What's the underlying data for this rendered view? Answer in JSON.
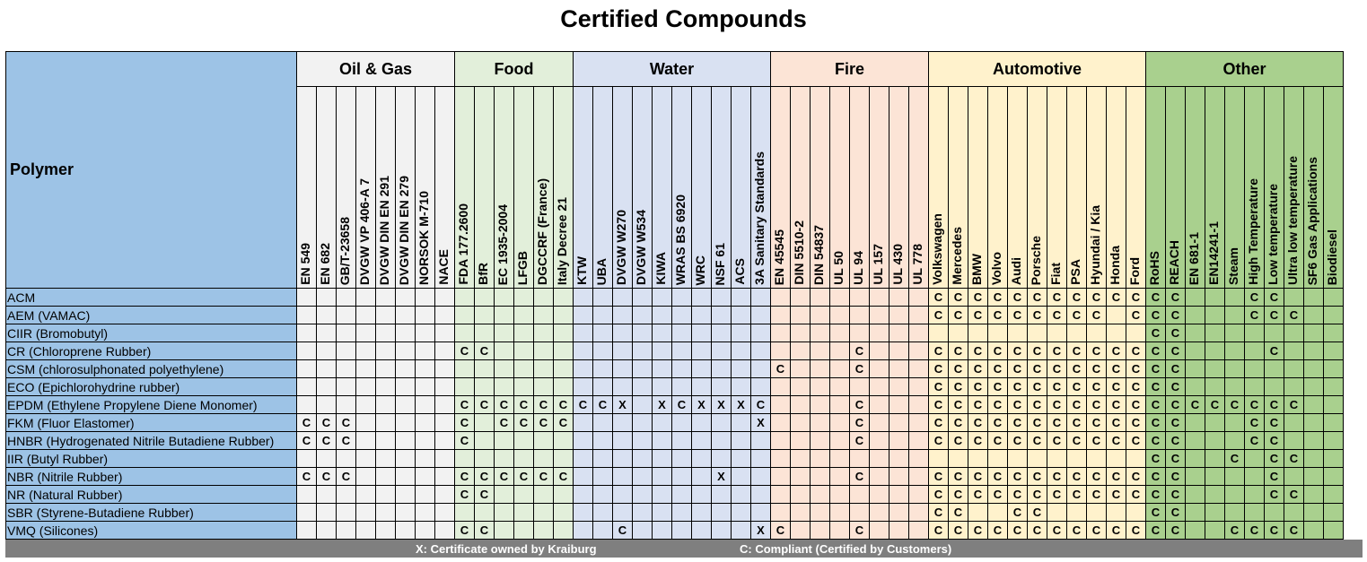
{
  "title": "Certified Compounds",
  "polymer_header": "Polymer",
  "groups": [
    {
      "name": "Oil & Gas",
      "cls": "c-oil",
      "standards": [
        "EN 549",
        "EN 682",
        "GB/T-23658",
        "DVGW VP 406-A 7",
        "DVGW DIN EN 291",
        "DVGW DIN EN 279",
        "NORSOK M-710",
        "NACE"
      ]
    },
    {
      "name": "Food",
      "cls": "c-food",
      "standards": [
        "FDA 177.2600",
        "BfR",
        "EC 1935-2004",
        "LFGB",
        "DGCCRF (France)",
        "Italy Decree 21"
      ]
    },
    {
      "name": "Water",
      "cls": "c-water",
      "standards": [
        "KTW",
        "UBA",
        "DVGW W270",
        "DVGW W534",
        "KIWA",
        "WRAS BS 6920",
        "WRC",
        "NSF 61",
        "ACS",
        "3A Sanitary Standards"
      ]
    },
    {
      "name": "Fire",
      "cls": "c-fire",
      "standards": [
        "EN 45545",
        "DIN 5510-2",
        "DIN 54837",
        "UL 50",
        "UL 94",
        "UL 157",
        "UL 430",
        "UL 778"
      ]
    },
    {
      "name": "Automotive",
      "cls": "c-auto",
      "standards": [
        "Volkswagen",
        "Mercedes",
        "BMW",
        "Volvo",
        "Audi",
        "Porsche",
        "Fiat",
        "PSA",
        "Hyundai / Kia",
        "Honda",
        "Ford"
      ]
    },
    {
      "name": "Other",
      "cls": "c-other",
      "standards": [
        "RoHS",
        "REACH",
        "EN 681-1",
        "EN14241-1",
        "Steam",
        "High Temperature",
        "Low temperature",
        "Ultra low temperature",
        "SF6 Gas Applications",
        "Biodiesel"
      ]
    }
  ],
  "rows": [
    {
      "polymer": "ACM",
      "cells": [
        "",
        "",
        "",
        "",
        "",
        "",
        "",
        "",
        "",
        "",
        "",
        "",
        "",
        "",
        "",
        "",
        "",
        "",
        "",
        "",
        "",
        "",
        "",
        "",
        "",
        "",
        "",
        "",
        "",
        "",
        "",
        "",
        "C",
        "C",
        "C",
        "C",
        "C",
        "C",
        "C",
        "C",
        "C",
        "C",
        "C",
        "C",
        "C",
        "",
        "",
        "",
        "C",
        "C",
        "",
        "",
        ""
      ]
    },
    {
      "polymer": "AEM (VAMAC)",
      "cells": [
        "",
        "",
        "",
        "",
        "",
        "",
        "",
        "",
        "",
        "",
        "",
        "",
        "",
        "",
        "",
        "",
        "",
        "",
        "",
        "",
        "",
        "",
        "",
        "",
        "",
        "",
        "",
        "",
        "",
        "",
        "",
        "",
        "C",
        "C",
        "C",
        "C",
        "C",
        "C",
        "C",
        "C",
        "C",
        "",
        "C",
        "C",
        "C",
        "",
        "",
        "",
        "C",
        "C",
        "C",
        "",
        ""
      ]
    },
    {
      "polymer": "CIIR (Bromobutyl)",
      "cells": [
        "",
        "",
        "",
        "",
        "",
        "",
        "",
        "",
        "",
        "",
        "",
        "",
        "",
        "",
        "",
        "",
        "",
        "",
        "",
        "",
        "",
        "",
        "",
        "",
        "",
        "",
        "",
        "",
        "",
        "",
        "",
        "",
        "",
        "",
        "",
        "",
        "",
        "",
        "",
        "",
        "",
        "",
        "",
        "C",
        "C",
        "",
        "",
        "",
        "",
        "",
        "",
        "",
        ""
      ]
    },
    {
      "polymer": "CR (Chloroprene Rubber)",
      "cells": [
        "",
        "",
        "",
        "",
        "",
        "",
        "",
        "",
        "C",
        "C",
        "",
        "",
        "",
        "",
        "",
        "",
        "",
        "",
        "",
        "",
        "",
        "",
        "",
        "",
        "",
        "",
        "",
        "",
        "C",
        "",
        "",
        "",
        "C",
        "C",
        "C",
        "C",
        "C",
        "C",
        "C",
        "C",
        "C",
        "C",
        "C",
        "C",
        "C",
        "",
        "",
        "",
        "",
        "C",
        "",
        "",
        ""
      ]
    },
    {
      "polymer": "CSM (chlorosulphonated polyethylene)",
      "cells": [
        "",
        "",
        "",
        "",
        "",
        "",
        "",
        "",
        "",
        "",
        "",
        "",
        "",
        "",
        "",
        "",
        "",
        "",
        "",
        "",
        "",
        "",
        "",
        "",
        "C",
        "",
        "",
        "",
        "C",
        "",
        "",
        "",
        "C",
        "C",
        "C",
        "C",
        "C",
        "C",
        "C",
        "C",
        "C",
        "C",
        "C",
        "C",
        "C",
        "",
        "",
        "",
        "",
        "",
        "",
        "",
        ""
      ]
    },
    {
      "polymer": "ECO (Epichlorohydrine rubber)",
      "cells": [
        "",
        "",
        "",
        "",
        "",
        "",
        "",
        "",
        "",
        "",
        "",
        "",
        "",
        "",
        "",
        "",
        "",
        "",
        "",
        "",
        "",
        "",
        "",
        "",
        "",
        "",
        "",
        "",
        "",
        "",
        "",
        "",
        "C",
        "C",
        "C",
        "C",
        "C",
        "C",
        "C",
        "C",
        "C",
        "C",
        "C",
        "C",
        "C",
        "",
        "",
        "",
        "",
        "",
        "",
        "",
        ""
      ]
    },
    {
      "polymer": "EPDM (Ethylene Propylene Diene Monomer)",
      "cells": [
        "",
        "",
        "",
        "",
        "",
        "",
        "",
        "",
        "C",
        "C",
        "C",
        "C",
        "C",
        "C",
        "C",
        "C",
        "X",
        "",
        "X",
        "C",
        "X",
        "X",
        "X",
        "C",
        "",
        "",
        "",
        "",
        "C",
        "",
        "",
        "",
        "C",
        "C",
        "C",
        "C",
        "C",
        "C",
        "C",
        "C",
        "C",
        "C",
        "C",
        "C",
        "C",
        "C",
        "C",
        "C",
        "C",
        "C",
        "C",
        "",
        ""
      ]
    },
    {
      "polymer": "FKM (Fluor Elastomer)",
      "cells": [
        "C",
        "C",
        "C",
        "",
        "",
        "",
        "",
        "",
        "C",
        "",
        "C",
        "C",
        "C",
        "C",
        "",
        "",
        "",
        "",
        "",
        "",
        "",
        "",
        "",
        "X",
        "",
        "",
        "",
        "",
        "C",
        "",
        "",
        "",
        "C",
        "C",
        "C",
        "C",
        "C",
        "C",
        "C",
        "C",
        "C",
        "C",
        "C",
        "C",
        "C",
        "",
        "",
        "",
        "C",
        "C",
        "",
        "",
        ""
      ]
    },
    {
      "polymer": "HNBR (Hydrogenated Nitrile Butadiene Rubber)",
      "cells": [
        "C",
        "C",
        "C",
        "",
        "",
        "",
        "",
        "",
        "C",
        "",
        "",
        "",
        "",
        "",
        "",
        "",
        "",
        "",
        "",
        "",
        "",
        "",
        "",
        "",
        "",
        "",
        "",
        "",
        "C",
        "",
        "",
        "",
        "C",
        "C",
        "C",
        "C",
        "C",
        "C",
        "C",
        "C",
        "C",
        "C",
        "C",
        "C",
        "C",
        "",
        "",
        "",
        "C",
        "C",
        "",
        "",
        ""
      ]
    },
    {
      "polymer": "IIR (Butyl Rubber)",
      "cells": [
        "",
        "",
        "",
        "",
        "",
        "",
        "",
        "",
        "",
        "",
        "",
        "",
        "",
        "",
        "",
        "",
        "",
        "",
        "",
        "",
        "",
        "",
        "",
        "",
        "",
        "",
        "",
        "",
        "",
        "",
        "",
        "",
        "",
        "",
        "",
        "",
        "",
        "",
        "",
        "",
        "",
        "",
        "",
        "C",
        "C",
        "",
        "",
        "C",
        "",
        "C",
        "C",
        "",
        ""
      ]
    },
    {
      "polymer": "NBR (Nitrile Rubber)",
      "cells": [
        "C",
        "C",
        "C",
        "",
        "",
        "",
        "",
        "",
        "C",
        "C",
        "C",
        "C",
        "C",
        "C",
        "",
        "",
        "",
        "",
        "",
        "",
        "",
        "X",
        "",
        "",
        "",
        "",
        "",
        "",
        "C",
        "",
        "",
        "",
        "C",
        "C",
        "C",
        "C",
        "C",
        "C",
        "C",
        "C",
        "C",
        "C",
        "C",
        "C",
        "C",
        "",
        "",
        "",
        "",
        "C",
        "",
        "",
        ""
      ]
    },
    {
      "polymer": "NR (Natural Rubber)",
      "cells": [
        "",
        "",
        "",
        "",
        "",
        "",
        "",
        "",
        "C",
        "C",
        "",
        "",
        "",
        "",
        "",
        "",
        "",
        "",
        "",
        "",
        "",
        "",
        "",
        "",
        "",
        "",
        "",
        "",
        "",
        "",
        "",
        "",
        "C",
        "C",
        "C",
        "C",
        "C",
        "C",
        "C",
        "C",
        "C",
        "C",
        "C",
        "C",
        "C",
        "",
        "",
        "",
        "",
        "C",
        "C",
        "",
        ""
      ]
    },
    {
      "polymer": "SBR (Styrene-Butadiene Rubber)",
      "cells": [
        "",
        "",
        "",
        "",
        "",
        "",
        "",
        "",
        "",
        "",
        "",
        "",
        "",
        "",
        "",
        "",
        "",
        "",
        "",
        "",
        "",
        "",
        "",
        "",
        "",
        "",
        "",
        "",
        "",
        "",
        "",
        "",
        "C",
        "C",
        "",
        "",
        "C",
        "C",
        "",
        "",
        "",
        "",
        "",
        "C",
        "C",
        "",
        "",
        "",
        "",
        "",
        "",
        "",
        ""
      ]
    },
    {
      "polymer": "VMQ (Silicones)",
      "cells": [
        "",
        "",
        "",
        "",
        "",
        "",
        "",
        "",
        "C",
        "C",
        "",
        "",
        "",
        "",
        "",
        "",
        "C",
        "",
        "",
        "",
        "",
        "",
        "",
        "X",
        "C",
        "",
        "",
        "",
        "C",
        "",
        "",
        "",
        "C",
        "C",
        "C",
        "C",
        "C",
        "C",
        "C",
        "C",
        "C",
        "C",
        "C",
        "C",
        "C",
        "",
        "",
        "C",
        "C",
        "C",
        "C",
        "",
        ""
      ]
    }
  ],
  "footer": {
    "legend_x": "X: Certificate owned by Kraiburg",
    "legend_c": "C: Compliant (Certified by Customers)"
  }
}
